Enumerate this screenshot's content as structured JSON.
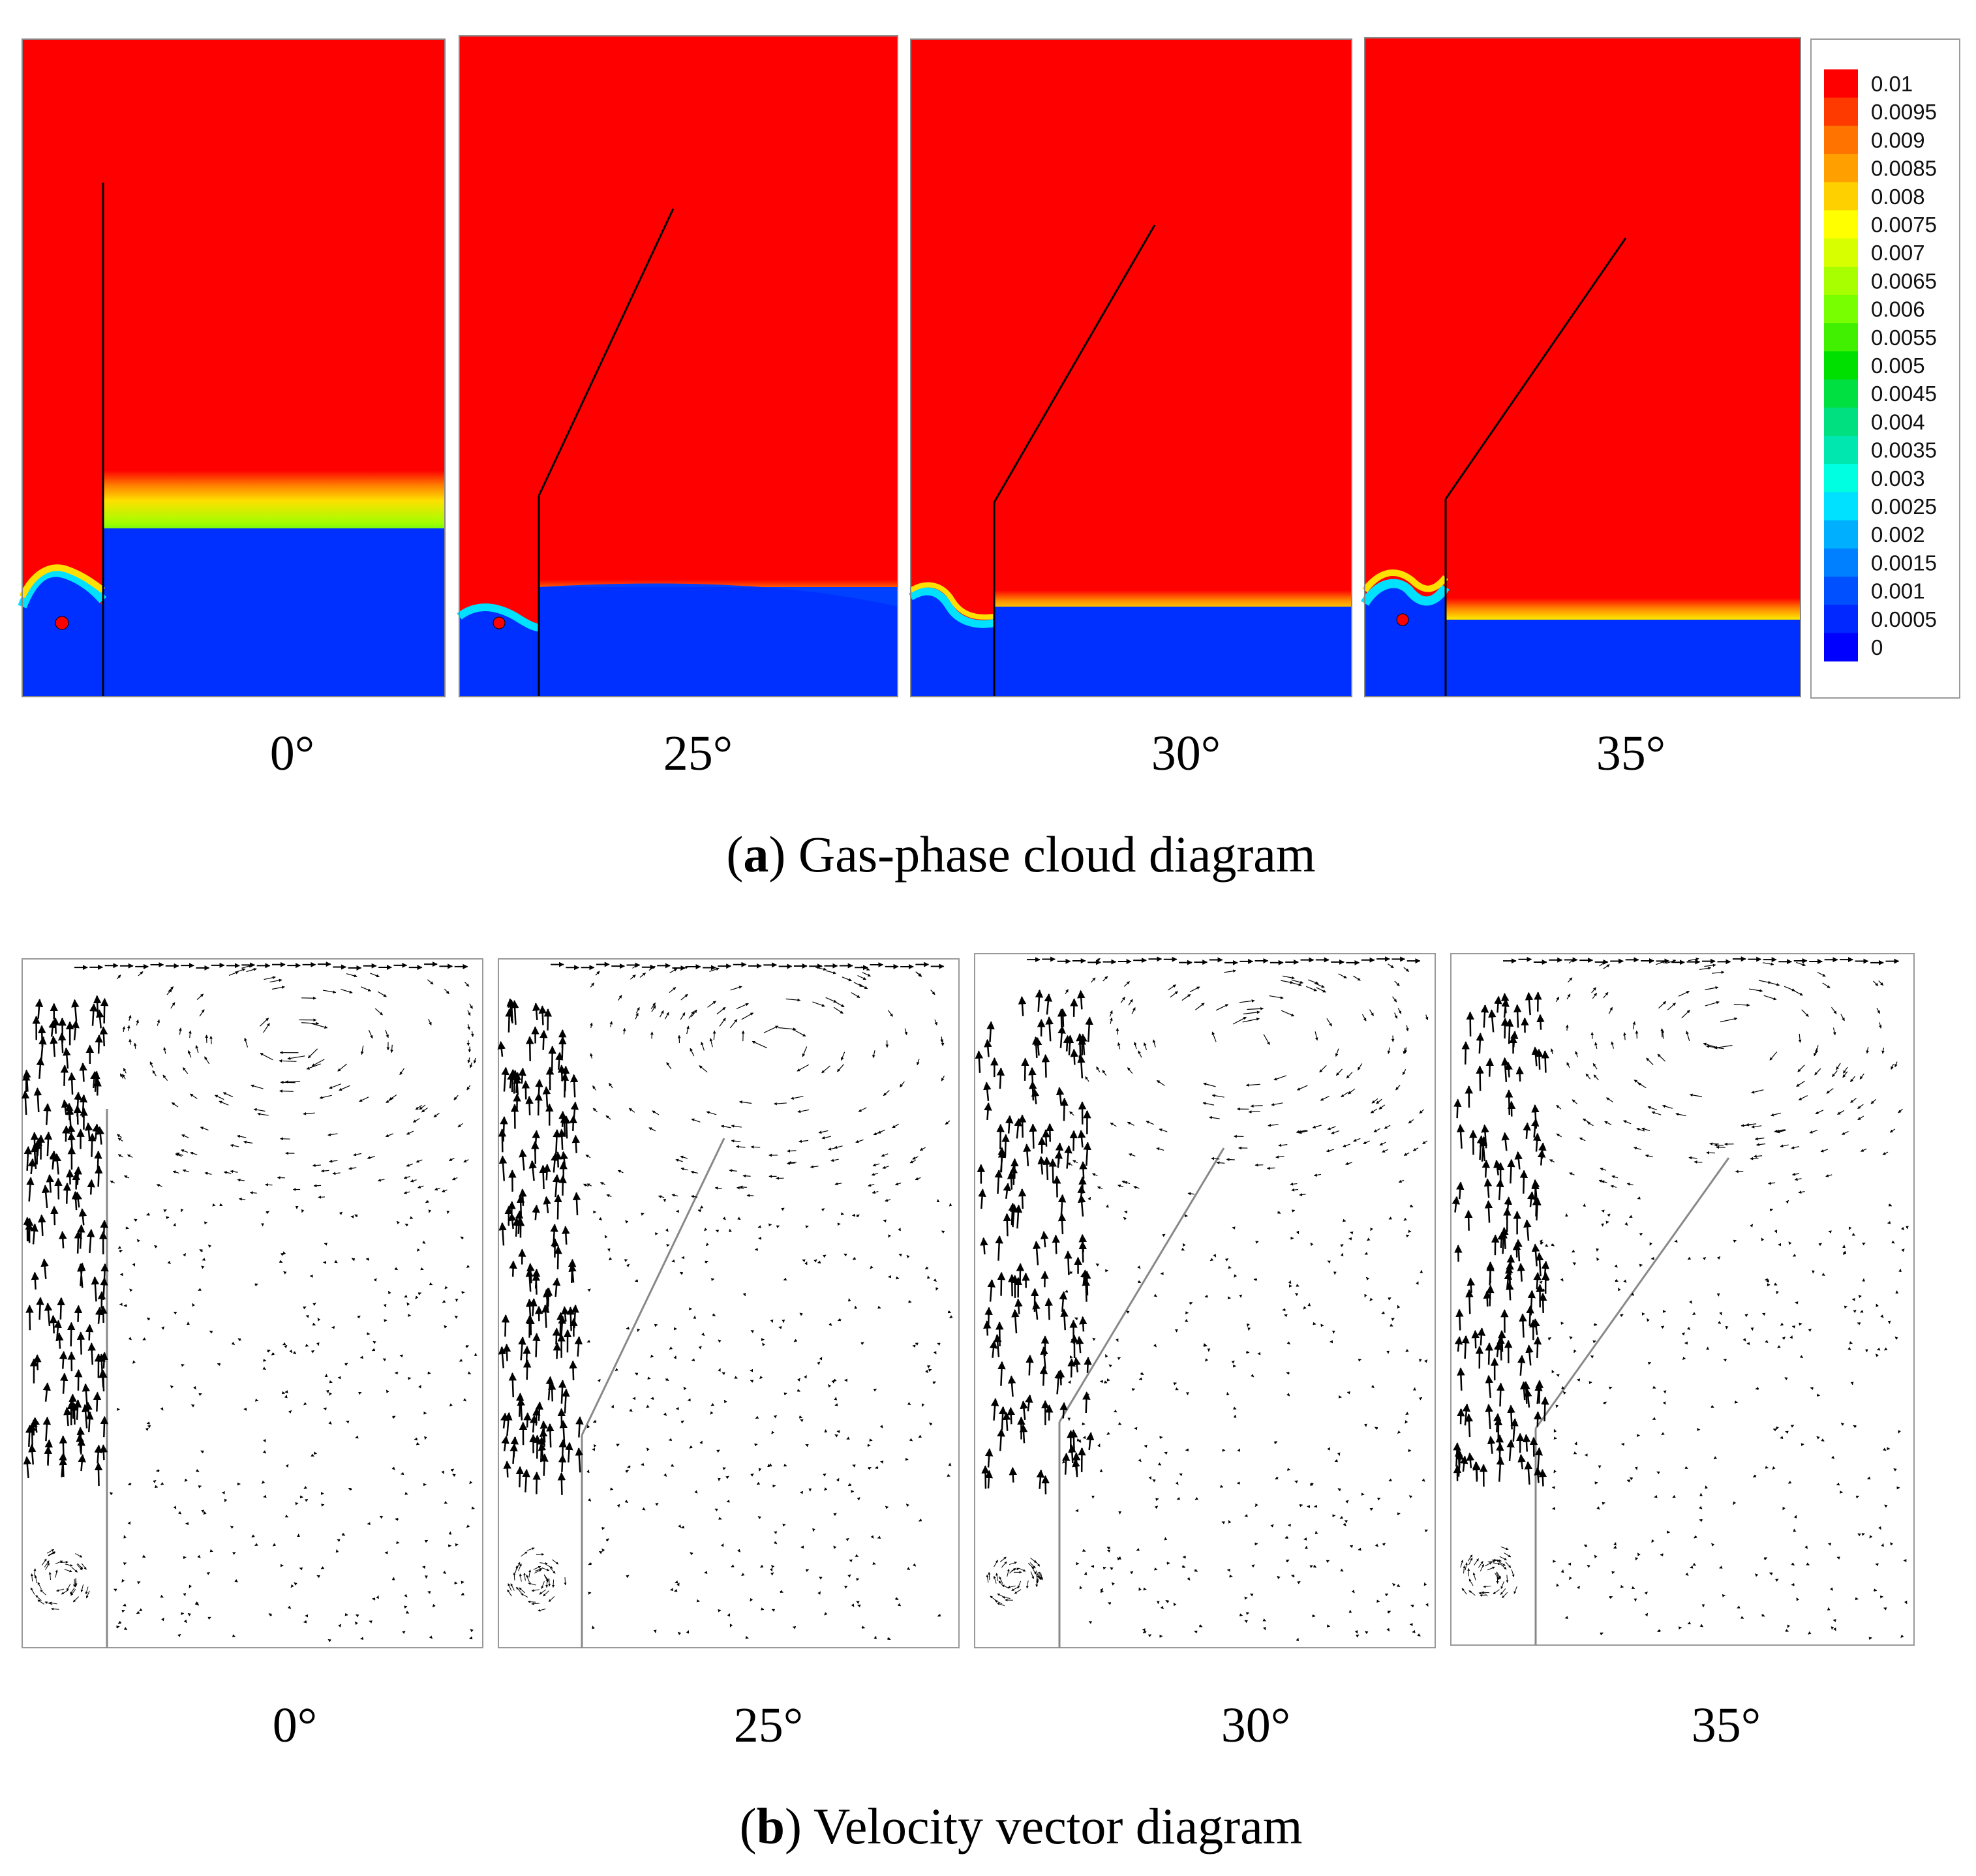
{
  "panel_a": {
    "caption_letter": "a",
    "caption_text": "Gas-phase cloud diagram",
    "angle_labels": [
      "0°",
      "25°",
      "30°",
      "35°"
    ],
    "legend": {
      "values": [
        "0.01",
        "0.0095",
        "0.009",
        "0.0085",
        "0.008",
        "0.0075",
        "0.007",
        "0.0065",
        "0.006",
        "0.0055",
        "0.005",
        "0.0045",
        "0.004",
        "0.0035",
        "0.003",
        "0.0025",
        "0.002",
        "0.0015",
        "0.001",
        "0.0005",
        "0"
      ],
      "colors": [
        "#ff0000",
        "#ff3a00",
        "#ff7400",
        "#ffa000",
        "#ffd000",
        "#ffff00",
        "#d8ff00",
        "#a8ff00",
        "#78ff00",
        "#40f000",
        "#00e000",
        "#00e040",
        "#00e080",
        "#00e8b0",
        "#00ffe0",
        "#00e0ff",
        "#00b0ff",
        "#0080ff",
        "#0050ff",
        "#0028ff",
        "#0000ff"
      ]
    }
  },
  "panel_b": {
    "caption_letter": "b",
    "caption_text": "Velocity vector diagram",
    "angle_labels": [
      "0°",
      "25°",
      "30°",
      "35°"
    ]
  }
}
